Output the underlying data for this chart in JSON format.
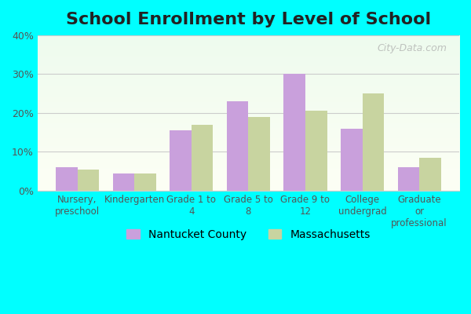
{
  "title": "School Enrollment by Level of School",
  "categories": [
    "Nursery,\npreschool",
    "Kindergarten",
    "Grade 1 to\n4",
    "Grade 5 to\n8",
    "Grade 9 to\n12",
    "College\nundergrad",
    "Graduate\nor\nprofessional"
  ],
  "nantucket": [
    6.0,
    4.5,
    15.5,
    23.0,
    30.0,
    16.0,
    6.0
  ],
  "massachusetts": [
    5.5,
    4.5,
    17.0,
    19.0,
    20.5,
    25.0,
    8.5
  ],
  "nantucket_color": "#c9a0dc",
  "massachusetts_color": "#c8d4a0",
  "ylim": [
    0,
    40
  ],
  "yticks": [
    0,
    10,
    20,
    30,
    40
  ],
  "ytick_labels": [
    "0%",
    "10%",
    "20%",
    "30%",
    "40%"
  ],
  "legend_labels": [
    "Nantucket County",
    "Massachusetts"
  ],
  "title_fontsize": 16,
  "bar_width": 0.38,
  "watermark": "City-Data.com"
}
